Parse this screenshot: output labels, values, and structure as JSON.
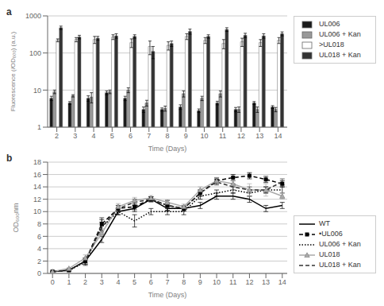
{
  "chart_data": [
    {
      "type": "bar",
      "annotation": "a",
      "x_label": "Time (Days)",
      "y_label": "Fluorescence (/OD₆₀₀) (a.u.)",
      "categories": [
        "2",
        "3",
        "4",
        "5",
        "6",
        "7",
        "8",
        "9",
        "10",
        "11",
        "12",
        "13",
        "14"
      ],
      "series": [
        {
          "name": "UL006",
          "color": "#1a1a1a",
          "values": [
            6.0,
            4.5,
            6.0,
            8.5,
            6.0,
            3.0,
            3.0,
            3.5,
            2.8,
            4.5,
            3.0,
            4.5,
            3.5
          ],
          "errors": [
            0.8,
            0.4,
            1.0,
            1.0,
            0.8,
            0.5,
            0.3,
            0.5,
            0.3,
            0.5,
            0.4,
            0.4,
            0.3
          ]
        },
        {
          "name": "UL006 + Kan",
          "color": "#999999",
          "values": [
            9.0,
            7.0,
            6.5,
            9.0,
            10.0,
            4.5,
            3.2,
            8.0,
            6.0,
            8.0,
            3.0,
            3.0,
            3.0
          ],
          "errors": [
            1.0,
            0.5,
            2.0,
            1.0,
            1.5,
            0.8,
            0.5,
            1.5,
            0.8,
            1.5,
            0.5,
            0.5,
            0.4
          ]
        },
        {
          "name": ">UL018",
          "color": "#ffffff",
          "values": [
            220,
            230,
            230,
            270,
            190,
            150,
            160,
            280,
            220,
            180,
            200,
            190,
            220
          ],
          "errors": [
            20,
            30,
            50,
            40,
            50,
            60,
            40,
            50,
            40,
            50,
            50,
            40,
            40
          ]
        },
        {
          "name": "UL018 + Kan",
          "color": "#333333",
          "values": [
            480,
            270,
            250,
            290,
            280,
            110,
            180,
            380,
            280,
            430,
            300,
            290,
            330
          ],
          "errors": [
            50,
            30,
            30,
            40,
            30,
            40,
            30,
            60,
            30,
            50,
            40,
            40,
            40
          ]
        }
      ],
      "log": "y",
      "ylim": [
        1,
        1000
      ],
      "yticks": [
        1,
        10,
        100,
        1000
      ],
      "grid": true,
      "legend": "upper right"
    },
    {
      "type": "line",
      "annotation": "b",
      "x_label": "Time (Days)",
      "y_label": "OD₆₀₀nm",
      "x": [
        0,
        1,
        2,
        3,
        4,
        5,
        6,
        7,
        8,
        9,
        10,
        11,
        12,
        13,
        14
      ],
      "series": [
        {
          "name": "WT",
          "color": "#000000",
          "line_style": "solid",
          "values": [
            0.3,
            0.5,
            2.0,
            5.5,
            10.0,
            10.5,
            12.0,
            10.5,
            10.5,
            11.0,
            12.5,
            12.5,
            12.0,
            10.5,
            11.0
          ],
          "errors": [
            0.05,
            0.1,
            0.3,
            0.5,
            0.5,
            0.5,
            0.4,
            0.4,
            0.4,
            0.5,
            0.5,
            0.5,
            0.5,
            0.5,
            0.5
          ]
        },
        {
          "name": "•UL006",
          "color": "#000000",
          "line_style": "dashed",
          "marker": "square",
          "values": [
            0.3,
            0.5,
            2.0,
            8.0,
            10.5,
            10.8,
            12.0,
            11.0,
            10.5,
            13.0,
            15.0,
            15.5,
            15.8,
            15.2,
            14.5
          ],
          "errors": [
            0.05,
            0.1,
            0.5,
            1.0,
            0.5,
            0.5,
            0.4,
            0.8,
            0.4,
            0.5,
            0.5,
            0.5,
            0.5,
            0.5,
            0.5
          ]
        },
        {
          "name": "UL006 + Kan",
          "color": "#000000",
          "line_style": "dotted",
          "values": [
            0.3,
            0.5,
            1.8,
            7.5,
            10.0,
            8.5,
            10.0,
            10.0,
            10.0,
            12.5,
            13.0,
            13.5,
            13.0,
            13.5,
            13.5
          ],
          "errors": [
            0.05,
            0.1,
            0.5,
            1.2,
            0.5,
            1.0,
            0.5,
            0.5,
            0.5,
            0.5,
            0.5,
            0.5,
            0.5,
            0.5,
            0.5
          ]
        },
        {
          "name": "UL018",
          "color": "#aaaaaa",
          "line_style": "solid",
          "marker": "triangle",
          "values": [
            0.3,
            0.8,
            2.5,
            6.5,
            10.8,
            11.8,
            12.2,
            11.5,
            10.8,
            13.5,
            15.0,
            14.5,
            13.5,
            13.5,
            12.5
          ],
          "errors": [
            0.05,
            0.1,
            0.5,
            0.8,
            0.5,
            0.5,
            0.4,
            0.4,
            0.4,
            0.5,
            0.5,
            1.0,
            1.0,
            1.0,
            0.5
          ]
        },
        {
          "name": "UL018 + Kan",
          "color": "#333333",
          "line_style": "dashed",
          "values": [
            0.3,
            0.5,
            2.0,
            7.5,
            10.5,
            11.5,
            12.0,
            11.0,
            10.5,
            13.0,
            14.8,
            14.0,
            13.5,
            13.5,
            14.8
          ],
          "errors": [
            0.05,
            0.1,
            0.5,
            0.8,
            0.5,
            0.5,
            0.4,
            0.4,
            0.4,
            0.5,
            0.5,
            0.5,
            0.5,
            0.5,
            0.5
          ]
        }
      ],
      "xlim": [
        -0.3,
        14.3
      ],
      "xticks": [
        0,
        1,
        2,
        3,
        4,
        5,
        6,
        7,
        8,
        9,
        10,
        11,
        12,
        13,
        14
      ],
      "ylim": [
        0,
        18
      ],
      "yticks": [
        0,
        2,
        4,
        6,
        8,
        10,
        12,
        14,
        16,
        18
      ],
      "grid": true,
      "legend": "lower right"
    }
  ]
}
